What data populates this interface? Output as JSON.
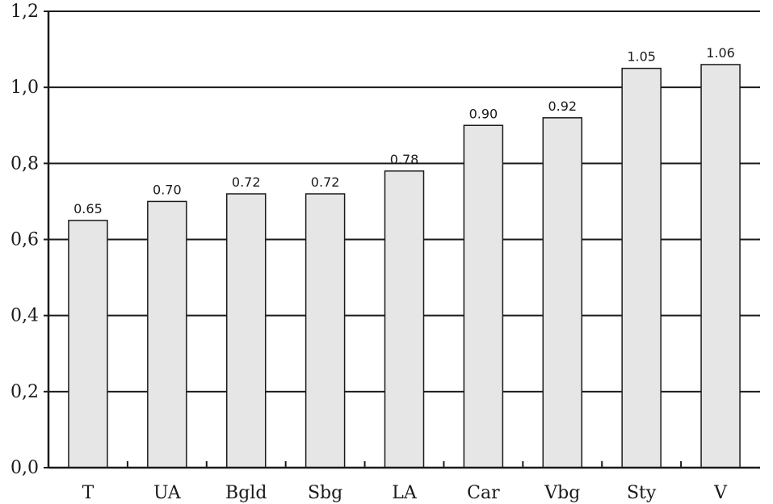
{
  "chart_data": {
    "type": "bar",
    "title": "",
    "xlabel": "",
    "ylabel": "",
    "categories": [
      "T",
      "UA",
      "Bgld",
      "Sbg",
      "LA",
      "Car",
      "Vbg",
      "Sty",
      "V"
    ],
    "values": [
      0.65,
      0.7,
      0.72,
      0.72,
      0.78,
      0.9,
      0.92,
      1.05,
      1.06
    ],
    "data_labels": [
      "0.65",
      "0.70",
      "0.72",
      "0.72",
      "0.78",
      "0.90",
      "0.92",
      "1.05",
      "1.06"
    ],
    "ylim": [
      0,
      1.2
    ],
    "yticks": [
      0,
      0.2,
      0.4,
      0.6,
      0.8,
      1.0,
      1.2
    ],
    "ytick_labels": [
      "0,0",
      "0,2",
      "0,4",
      "0,6",
      "0,8",
      "1,0",
      "1,2"
    ],
    "grid": true,
    "legend": "none",
    "bar_color": "#e6e6e6",
    "bar_edge_color": "#1a1a1a",
    "gridline_color": "#1a1a1a"
  }
}
